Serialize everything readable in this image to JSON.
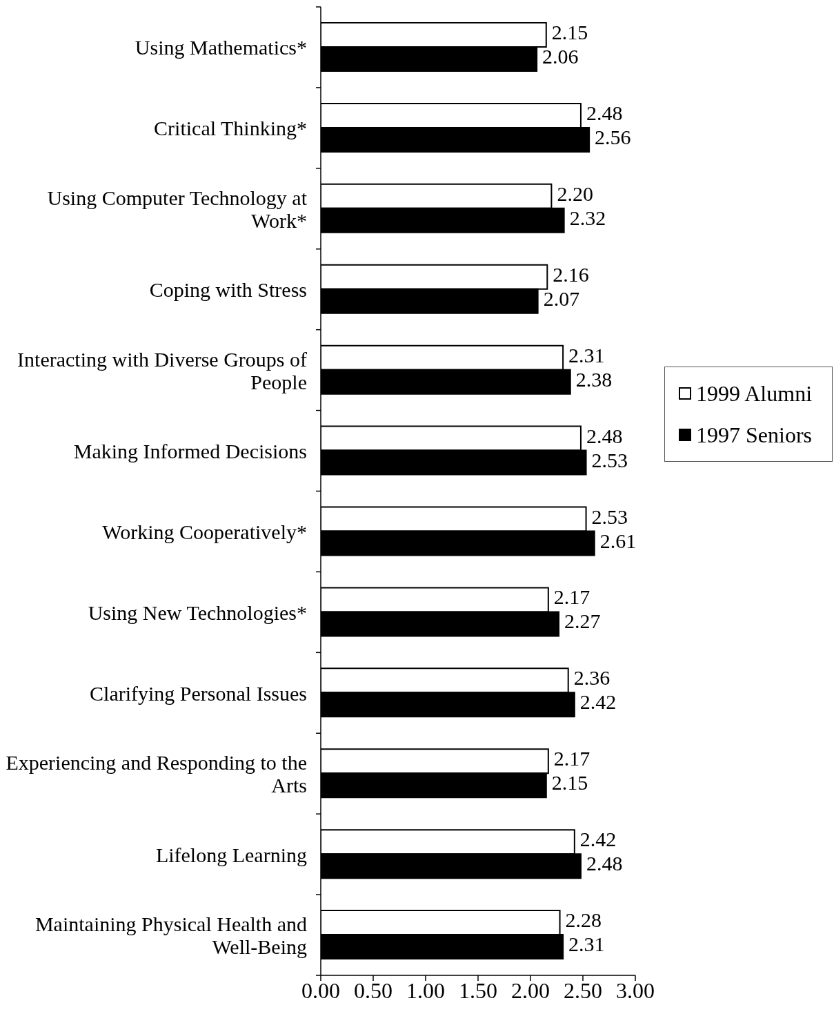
{
  "chart_data": {
    "type": "bar",
    "orientation": "horizontal",
    "categories": [
      "Using Mathematics*",
      "Critical Thinking*",
      "Using Computer Technology at Work*",
      "Coping with Stress",
      "Interacting with Diverse Groups of People",
      "Making Informed Decisions",
      "Working Cooperatively*",
      "Using New Technologies*",
      "Clarifying Personal Issues",
      "Experiencing and Responding to the Arts",
      "Lifelong Learning",
      "Maintaining Physical Health and Well-Being"
    ],
    "series": [
      {
        "name": "1999 Alumni",
        "color": "#ffffff",
        "values": [
          2.15,
          2.48,
          2.2,
          2.16,
          2.31,
          2.48,
          2.53,
          2.17,
          2.36,
          2.17,
          2.42,
          2.28
        ],
        "value_labels": [
          "2.15",
          "2.48",
          "2.20",
          "2.16",
          "2.31",
          "2.48",
          "2.53",
          "2.17",
          "2.36",
          "2.17",
          "2.42",
          "2.28"
        ]
      },
      {
        "name": "1997 Seniors",
        "color": "#000000",
        "values": [
          2.06,
          2.56,
          2.32,
          2.07,
          2.38,
          2.53,
          2.61,
          2.27,
          2.42,
          2.15,
          2.48,
          2.31
        ],
        "value_labels": [
          "2.06",
          "2.56",
          "2.32",
          "2.07",
          "2.38",
          "2.53",
          "2.61",
          "2.27",
          "2.42",
          "2.15",
          "2.48",
          "2.31"
        ]
      }
    ],
    "xlim": [
      0,
      3
    ],
    "xticks": [
      {
        "value": 0,
        "label": "0.00"
      },
      {
        "value": 0.5,
        "label": "0.50"
      },
      {
        "value": 1,
        "label": "1.00"
      },
      {
        "value": 1.5,
        "label": "1.50"
      },
      {
        "value": 2,
        "label": "2.00"
      },
      {
        "value": 2.5,
        "label": "2.50"
      },
      {
        "value": 3,
        "label": "3.00"
      }
    ],
    "legend": "right"
  }
}
